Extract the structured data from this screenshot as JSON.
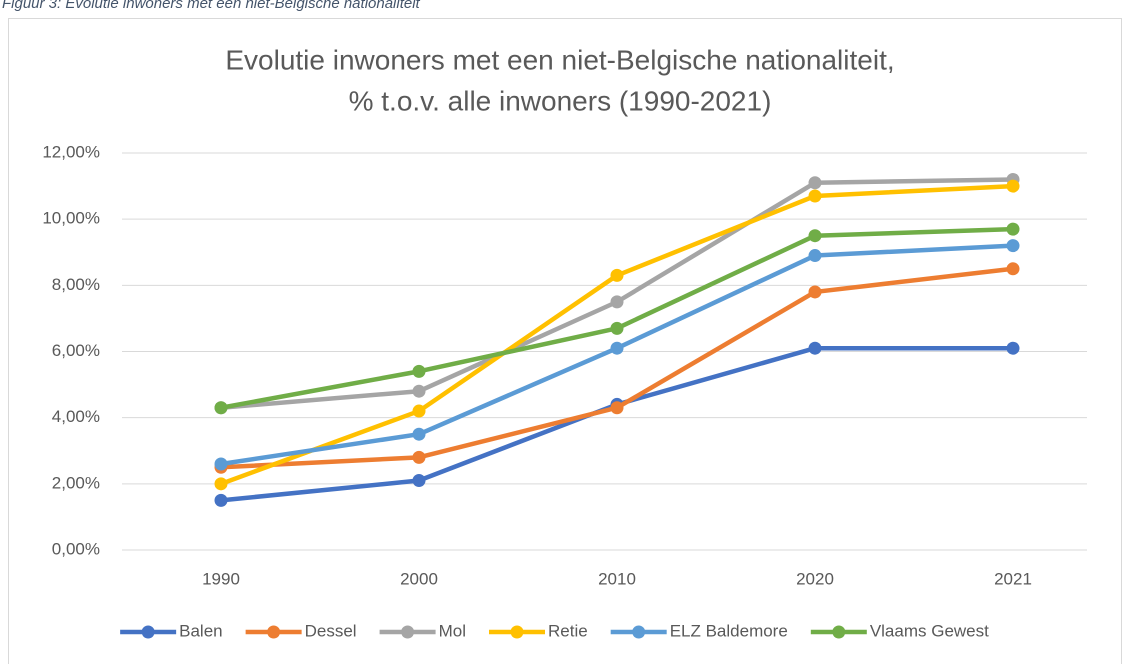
{
  "caption": "Figuur 3: Evolutie inwoners met een niet-Belgische nationaliteit",
  "chart_data": {
    "type": "line",
    "title": [
      "Evolutie inwoners met een niet-Belgische nationaliteit,",
      "% t.o.v. alle inwoners (1990-2021)"
    ],
    "categories": [
      "1990",
      "2000",
      "2010",
      "2020",
      "2021"
    ],
    "series": [
      {
        "name": "Balen",
        "color": "#4472c4",
        "values": [
          1.5,
          2.1,
          4.4,
          6.1,
          6.1
        ]
      },
      {
        "name": "Dessel",
        "color": "#ed7d31",
        "values": [
          2.5,
          2.8,
          4.3,
          7.8,
          8.5
        ]
      },
      {
        "name": "Mol",
        "color": "#a5a5a5",
        "values": [
          4.3,
          4.8,
          7.5,
          11.1,
          11.2
        ]
      },
      {
        "name": "Retie",
        "color": "#ffc000",
        "values": [
          2.0,
          4.2,
          8.3,
          10.7,
          11.0
        ]
      },
      {
        "name": "ELZ Baldemore",
        "color": "#5b9bd5",
        "values": [
          2.6,
          3.5,
          6.1,
          8.9,
          9.2
        ]
      },
      {
        "name": "Vlaams Gewest",
        "color": "#70ad47",
        "values": [
          4.3,
          5.4,
          6.7,
          9.5,
          9.7
        ]
      }
    ],
    "ylim": [
      0,
      12
    ],
    "yticks": [
      {
        "value": 0,
        "label": "0,00%"
      },
      {
        "value": 2,
        "label": "2,00%"
      },
      {
        "value": 4,
        "label": "4,00%"
      },
      {
        "value": 6,
        "label": "6,00%"
      },
      {
        "value": 8,
        "label": "8,00%"
      },
      {
        "value": 10,
        "label": "10,00%"
      },
      {
        "value": 12,
        "label": "12,00%"
      }
    ],
    "grid": true,
    "legend": "bottom"
  }
}
